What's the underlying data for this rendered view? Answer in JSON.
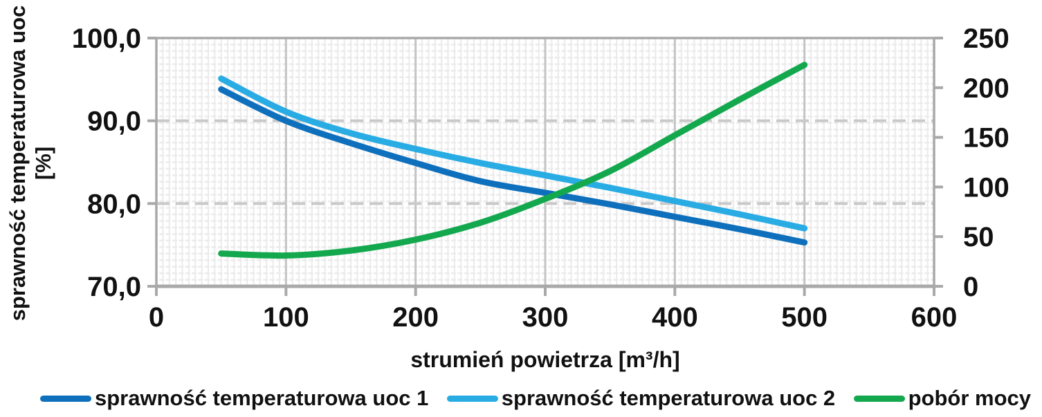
{
  "chart_data": {
    "type": "line",
    "x": [
      50,
      100,
      150,
      200,
      250,
      300,
      350,
      400,
      450,
      500
    ],
    "series": [
      {
        "name": "sprawność temperaturowa uoc 1",
        "axis": "left",
        "color": "#0e70bc",
        "values": [
          93.8,
          90.0,
          87.3,
          84.9,
          82.7,
          81.3,
          79.9,
          78.4,
          76.9,
          75.3
        ]
      },
      {
        "name": "sprawność temperaturowa uoc 2",
        "axis": "left",
        "color": "#29ace4",
        "values": [
          95.1,
          91.1,
          88.5,
          86.6,
          84.9,
          83.4,
          81.9,
          80.3,
          78.7,
          77.0
        ]
      },
      {
        "name": "pobór mocy",
        "axis": "right",
        "color": "#14a84e",
        "values": [
          33,
          31,
          36,
          47,
          64,
          88,
          116,
          152,
          188,
          223
        ]
      }
    ],
    "x_axis": {
      "label": "strumień powietrza [m³/h]",
      "min": 0,
      "max": 600,
      "ticks": [
        {
          "value": 0,
          "label": "0"
        },
        {
          "value": 100,
          "label": "100"
        },
        {
          "value": 200,
          "label": "200"
        },
        {
          "value": 300,
          "label": "300"
        },
        {
          "value": 400,
          "label": "400"
        },
        {
          "value": 500,
          "label": "500"
        },
        {
          "value": 600,
          "label": "600"
        }
      ]
    },
    "left_axis": {
      "title_line1": "sprawność temperaturowa uoc",
      "title_line2": "[%]",
      "min": 70,
      "max": 100,
      "ticks": [
        {
          "value": 100,
          "label": "100,0"
        },
        {
          "value": 90,
          "label": "90,0"
        },
        {
          "value": 80,
          "label": "80,0"
        },
        {
          "value": 70,
          "label": "70,0"
        }
      ],
      "grid_values": [
        90,
        80
      ]
    },
    "right_axis": {
      "min": 0,
      "max": 250,
      "ticks": [
        {
          "value": 250,
          "label": "250"
        },
        {
          "value": 200,
          "label": "200"
        },
        {
          "value": 150,
          "label": "150"
        },
        {
          "value": 100,
          "label": "100"
        },
        {
          "value": 50,
          "label": "50"
        },
        {
          "value": 0,
          "label": "0"
        }
      ]
    },
    "legend_position": "bottom",
    "grid": {
      "minor_mesh": true,
      "major_vertical": "solid",
      "major_horizontal": "dashed"
    },
    "colors": {
      "axis_line": "#a9a9a9",
      "major_grid": "#c4c4c4",
      "major_grid_dashed": "#c9c9c9",
      "minor_grid": "#ebebeb",
      "text": "#111111",
      "background": "#ffffff"
    }
  }
}
